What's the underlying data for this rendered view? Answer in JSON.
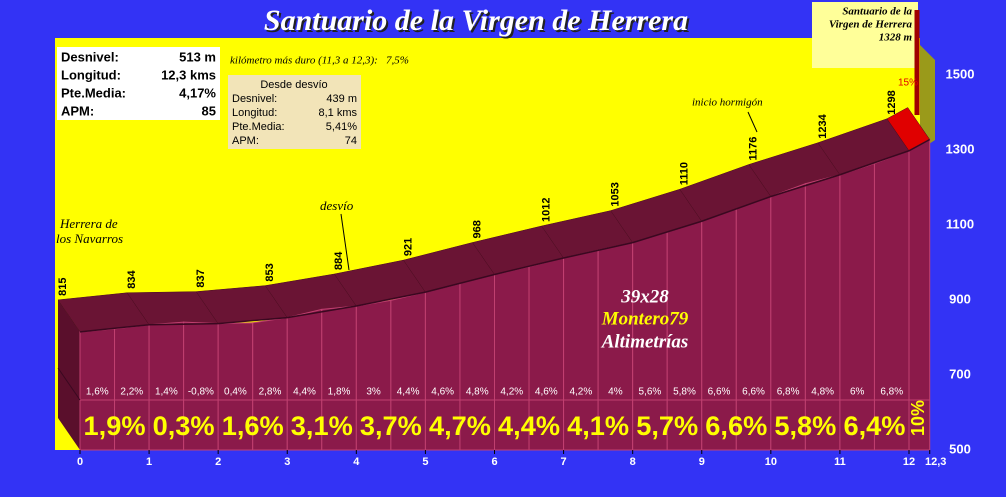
{
  "chart_data": {
    "type": "area",
    "title": "Santuario de la Virgen de Herrera",
    "x": [
      0,
      1,
      2,
      3,
      4,
      5,
      6,
      7,
      8,
      9,
      10,
      11,
      12,
      12.3
    ],
    "values": [
      815,
      834,
      837,
      853,
      884,
      921,
      968,
      1012,
      1053,
      1110,
      1176,
      1234,
      1298,
      1328
    ],
    "color": "#8b1a4a",
    "xlim": [
      0,
      12.3
    ],
    "xticks": [
      0,
      1,
      2,
      3,
      4,
      5,
      6,
      7,
      8,
      9,
      10,
      11,
      12,
      {
        "value": 12.3,
        "label": "12,3"
      }
    ],
    "ylim": [
      500,
      1600
    ],
    "yticks": [
      500,
      700,
      900,
      1100,
      1300,
      1500
    ],
    "km_grades": {
      "values": [
        1.9,
        0.3,
        1.6,
        3.1,
        3.7,
        4.7,
        4.4,
        4.1,
        5.7,
        6.6,
        5.8,
        6.4,
        10
      ],
      "value_labels": [
        "1,9%",
        "0,3%",
        "1,6%",
        "3,1%",
        "3,7%",
        "4,7%",
        "4,4%",
        "4,1%",
        "5,7%",
        "6,6%",
        "5,8%",
        "6,4%",
        "10%"
      ]
    },
    "half_km_grades": {
      "values": [
        1.6,
        2.2,
        1.4,
        -0.8,
        0.4,
        2.8,
        4.4,
        1.8,
        3,
        4.4,
        4.6,
        4.8,
        4.2,
        4.6,
        4.2,
        4,
        5.6,
        5.8,
        6.6,
        6.6,
        6.8,
        4.8,
        6,
        6.8
      ],
      "value_labels": [
        "1,6%",
        "2,2%",
        "1,4%",
        "-0,8%",
        "0,4%",
        "2,8%",
        "4,4%",
        "1,8%",
        "3%",
        "4,4%",
        "4,6%",
        "4,8%",
        "4,2%",
        "4,6%",
        "4,2%",
        "4%",
        "5,6%",
        "5,8%",
        "6,6%",
        "6,6%",
        "6,8%",
        "4,8%",
        "6%",
        "6,8%"
      ]
    },
    "annotations": {
      "start": [
        "Herrera de",
        "los Navarros"
      ],
      "turnoff": "desvío",
      "concrete": "inicio hormigón",
      "summit": [
        "Santuario de la",
        "Virgen de Herrera",
        "1328 m"
      ],
      "steep": "15%"
    }
  },
  "summary": {
    "rows": [
      [
        "Desnivel:",
        "513 m"
      ],
      [
        "Longitud:",
        "12,3 kms"
      ],
      [
        "Pte.Media:",
        "4,17%"
      ],
      [
        "APM:",
        "85"
      ]
    ]
  },
  "hardest_km": "kilómetro más duro (11,3 a 12,3):   7,5%",
  "from_turnoff": {
    "title": "Desde desvío",
    "rows": [
      [
        "Desnivel:",
        "439 m"
      ],
      [
        "Longitud:",
        "8,1 kms"
      ],
      [
        "Pte.Media:",
        "5,41%"
      ],
      [
        "APM:",
        "74"
      ]
    ]
  },
  "watermark": [
    "39x28",
    "Montero79",
    "Altimetrías"
  ]
}
